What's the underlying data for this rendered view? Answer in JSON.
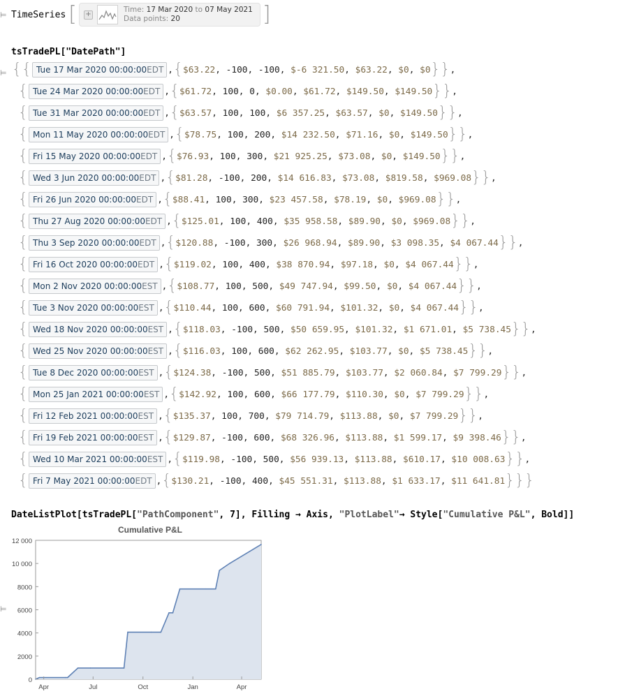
{
  "cell1": {
    "marker": "⊨",
    "head": "TimeSeries",
    "info_time_label": "Time:",
    "info_time_start": "17 Mar 2020",
    "info_time_to": "to",
    "info_time_end": "07 May 2021",
    "info_points_label": "Data points:",
    "info_points_value": "20",
    "plus_icon": "plus-icon",
    "sparkline_icon": "sparkline-icon"
  },
  "cell2": {
    "input": "tsTradePL[\"DatePath\"]",
    "marker": "⊨"
  },
  "rows": [
    {
      "day": "Tue",
      "date": "17 Mar 2020",
      "time": "00:00:00",
      "tz": "EDT",
      "vals": [
        "$63.22",
        "-100",
        "-100",
        "$-6 321.50",
        "$63.22",
        "$0",
        "$0"
      ]
    },
    {
      "day": "Tue",
      "date": "24 Mar 2020",
      "time": "00:00:00",
      "tz": "EDT",
      "vals": [
        "$61.72",
        "100",
        "0",
        "$0.00",
        "$61.72",
        "$149.50",
        "$149.50"
      ]
    },
    {
      "day": "Tue",
      "date": "31 Mar 2020",
      "time": "00:00:00",
      "tz": "EDT",
      "vals": [
        "$63.57",
        "100",
        "100",
        "$6 357.25",
        "$63.57",
        "$0",
        "$149.50"
      ]
    },
    {
      "day": "Mon",
      "date": "11 May 2020",
      "time": "00:00:00",
      "tz": "EDT",
      "vals": [
        "$78.75",
        "100",
        "200",
        "$14 232.50",
        "$71.16",
        "$0",
        "$149.50"
      ]
    },
    {
      "day": "Fri",
      "date": "15 May 2020",
      "time": "00:00:00",
      "tz": "EDT",
      "vals": [
        "$76.93",
        "100",
        "300",
        "$21 925.25",
        "$73.08",
        "$0",
        "$149.50"
      ]
    },
    {
      "day": "Wed",
      "date": "3 Jun 2020",
      "time": "00:00:00",
      "tz": "EDT",
      "vals": [
        "$81.28",
        "-100",
        "200",
        "$14 616.83",
        "$73.08",
        "$819.58",
        "$969.08"
      ]
    },
    {
      "day": "Fri",
      "date": "26 Jun 2020",
      "time": "00:00:00",
      "tz": "EDT",
      "vals": [
        "$88.41",
        "100",
        "300",
        "$23 457.58",
        "$78.19",
        "$0",
        "$969.08"
      ]
    },
    {
      "day": "Thu",
      "date": "27 Aug 2020",
      "time": "00:00:00",
      "tz": "EDT",
      "vals": [
        "$125.01",
        "100",
        "400",
        "$35 958.58",
        "$89.90",
        "$0",
        "$969.08"
      ]
    },
    {
      "day": "Thu",
      "date": "3 Sep 2020",
      "time": "00:00:00",
      "tz": "EDT",
      "vals": [
        "$120.88",
        "-100",
        "300",
        "$26 968.94",
        "$89.90",
        "$3 098.35",
        "$4 067.44"
      ]
    },
    {
      "day": "Fri",
      "date": "16 Oct 2020",
      "time": "00:00:00",
      "tz": "EDT",
      "vals": [
        "$119.02",
        "100",
        "400",
        "$38 870.94",
        "$97.18",
        "$0",
        "$4 067.44"
      ]
    },
    {
      "day": "Mon",
      "date": "2 Nov 2020",
      "time": "00:00:00",
      "tz": "EST",
      "vals": [
        "$108.77",
        "100",
        "500",
        "$49 747.94",
        "$99.50",
        "$0",
        "$4 067.44"
      ]
    },
    {
      "day": "Tue",
      "date": "3 Nov 2020",
      "time": "00:00:00",
      "tz": "EST",
      "vals": [
        "$110.44",
        "100",
        "600",
        "$60 791.94",
        "$101.32",
        "$0",
        "$4 067.44"
      ]
    },
    {
      "day": "Wed",
      "date": "18 Nov 2020",
      "time": "00:00:00",
      "tz": "EST",
      "vals": [
        "$118.03",
        "-100",
        "500",
        "$50 659.95",
        "$101.32",
        "$1 671.01",
        "$5 738.45"
      ]
    },
    {
      "day": "Wed",
      "date": "25 Nov 2020",
      "time": "00:00:00",
      "tz": "EST",
      "vals": [
        "$116.03",
        "100",
        "600",
        "$62 262.95",
        "$103.77",
        "$0",
        "$5 738.45"
      ]
    },
    {
      "day": "Tue",
      "date": "8 Dec 2020",
      "time": "00:00:00",
      "tz": "EST",
      "vals": [
        "$124.38",
        "-100",
        "500",
        "$51 885.79",
        "$103.77",
        "$2 060.84",
        "$7 799.29"
      ]
    },
    {
      "day": "Mon",
      "date": "25 Jan 2021",
      "time": "00:00:00",
      "tz": "EST",
      "vals": [
        "$142.92",
        "100",
        "600",
        "$66 177.79",
        "$110.30",
        "$0",
        "$7 799.29"
      ]
    },
    {
      "day": "Fri",
      "date": "12 Feb 2021",
      "time": "00:00:00",
      "tz": "EST",
      "vals": [
        "$135.37",
        "100",
        "700",
        "$79 714.79",
        "$113.88",
        "$0",
        "$7 799.29"
      ]
    },
    {
      "day": "Fri",
      "date": "19 Feb 2021",
      "time": "00:00:00",
      "tz": "EST",
      "vals": [
        "$129.87",
        "-100",
        "600",
        "$68 326.96",
        "$113.88",
        "$1 599.17",
        "$9 398.46"
      ]
    },
    {
      "day": "Wed",
      "date": "10 Mar 2021",
      "time": "00:00:00",
      "tz": "EST",
      "vals": [
        "$119.98",
        "-100",
        "500",
        "$56 939.13",
        "$113.88",
        "$610.17",
        "$10 008.63"
      ]
    },
    {
      "day": "Fri",
      "date": "7 May 2021",
      "time": "00:00:00",
      "tz": "EDT",
      "vals": [
        "$130.21",
        "-100",
        "400",
        "$45 551.31",
        "$113.88",
        "$1 633.17",
        "$11 641.81"
      ]
    }
  ],
  "cell3": {
    "input_fn": "DateListPlot[tsTradePL[",
    "input_str1": "\"PathComponent\"",
    "input_mid": ", 7], Filling ",
    "input_arrow": "→",
    "input_mid2": " Axis, ",
    "input_str2": "\"PlotLabel\"",
    "input_arrow2": "→",
    "input_mid3": " Style[",
    "input_str3": "\"Cumulative P&L\"",
    "input_end": ", Bold]]",
    "marker": "⊨"
  },
  "chart_data": {
    "type": "area",
    "title": "Cumulative P&L",
    "xlabel": "",
    "ylabel": "",
    "x": [
      "2020-03-17",
      "2020-03-24",
      "2020-03-31",
      "2020-05-11",
      "2020-05-15",
      "2020-06-03",
      "2020-06-26",
      "2020-08-27",
      "2020-09-03",
      "2020-10-16",
      "2020-11-02",
      "2020-11-03",
      "2020-11-18",
      "2020-11-25",
      "2020-12-08",
      "2021-01-25",
      "2021-02-12",
      "2021-02-19",
      "2021-03-10",
      "2021-05-07"
    ],
    "y": [
      0,
      149.5,
      149.5,
      149.5,
      149.5,
      969.08,
      969.08,
      969.08,
      4067.44,
      4067.44,
      4067.44,
      4067.44,
      5738.45,
      5738.45,
      7799.29,
      7799.29,
      7799.29,
      9398.46,
      10008.63,
      11641.81
    ],
    "ylim": [
      0,
      12000
    ],
    "yticks": [
      0,
      2000,
      4000,
      6000,
      8000,
      10000,
      12000
    ],
    "ytick_labels": [
      "0",
      "2000",
      "4000",
      "6000",
      "8000",
      "10 000",
      "12 000"
    ],
    "xticks": [
      "2020-04-01",
      "2020-07-01",
      "2020-10-01",
      "2021-01-01",
      "2021-04-01"
    ],
    "xtick_labels": [
      "Apr",
      "Jul",
      "Oct",
      "Jan",
      "Apr"
    ],
    "filling": "axis",
    "line_color": "#5e81b5",
    "fill_color": "#dde4ee",
    "grid": false
  }
}
